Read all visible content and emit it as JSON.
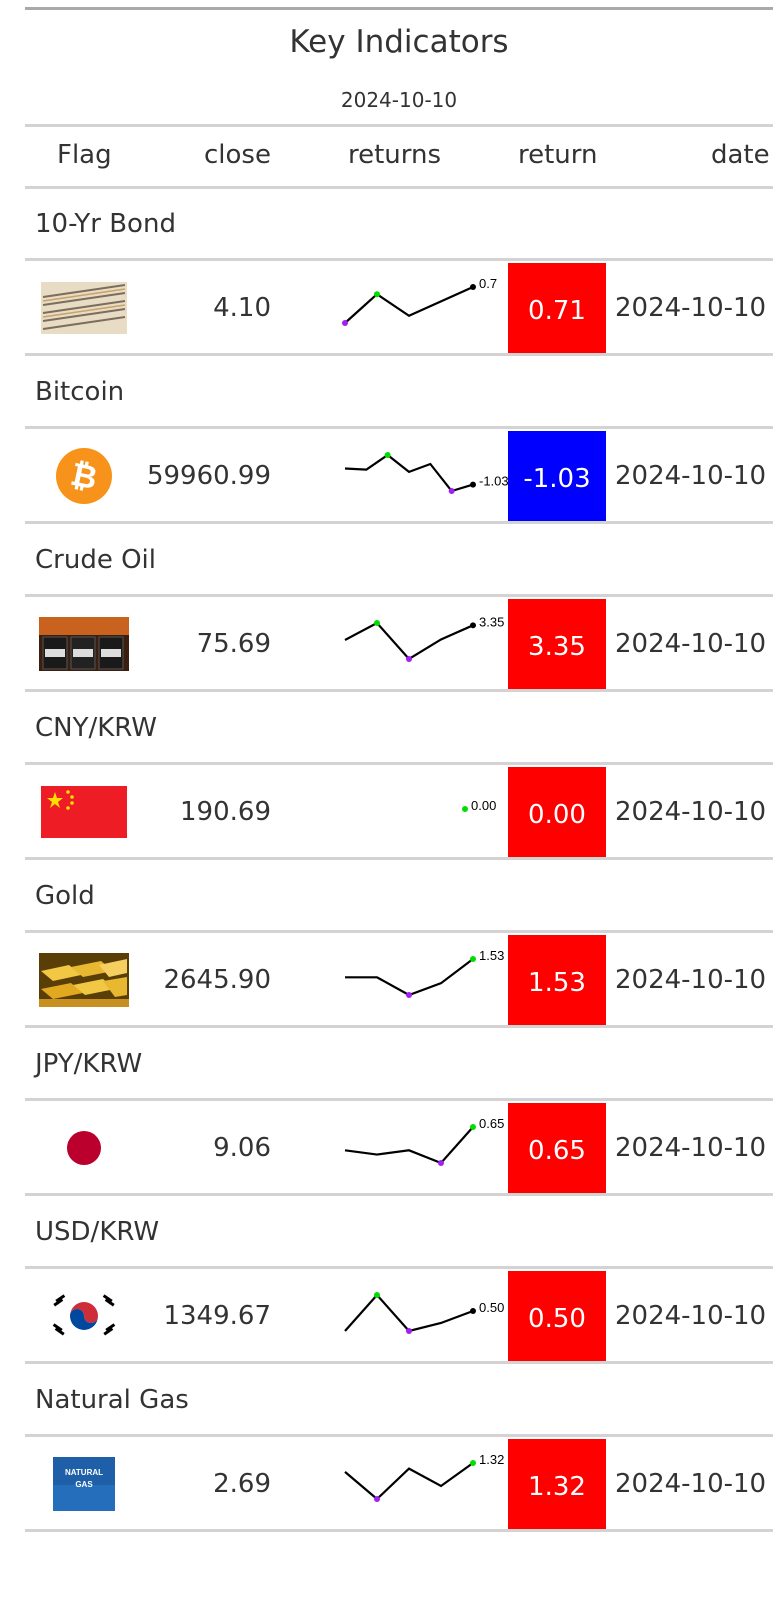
{
  "title": "Key Indicators",
  "subtitle": "2024-10-10",
  "columns": [
    "Flag",
    "close",
    "returns",
    "return",
    "date"
  ],
  "rows": [
    {
      "group": "10-Yr Bond",
      "flag_icon": "bond-paper-icon",
      "close": "4.10",
      "return": "0.71",
      "return_color": "#ff0000",
      "date": "2024-10-10",
      "spark": {
        "values": [
          0.2,
          0.6,
          0.3,
          0.5,
          0.7
        ],
        "label": "0.7",
        "points": [
          "#a020f0",
          "#00dd00",
          "",
          "",
          "#000000"
        ]
      }
    },
    {
      "group": "Bitcoin",
      "flag_icon": "bitcoin-icon",
      "close": "59960.99",
      "return": "-1.03",
      "return_color": "#0000ff",
      "date": "2024-10-10",
      "spark": {
        "values": [
          0.4,
          0.3,
          1.6,
          0.1,
          0.8,
          -1.6,
          -1.03
        ],
        "label": "-1.03",
        "points": [
          "",
          "",
          "#00dd00",
          "",
          "",
          "#a020f0",
          "#000000"
        ]
      }
    },
    {
      "group": "Crude Oil",
      "flag_icon": "oil-barrels-icon",
      "close": "75.69",
      "return": "3.35",
      "return_color": "#ff0000",
      "date": "2024-10-10",
      "spark": {
        "values": [
          0.5,
          3.8,
          -3.2,
          0.6,
          3.35
        ],
        "label": "3.35",
        "points": [
          "",
          "#00dd00",
          "#a020f0",
          "",
          "#000000"
        ]
      }
    },
    {
      "group": "CNY/KRW",
      "flag_icon": "china-flag-icon",
      "close": "190.69",
      "return": "0.00",
      "return_color": "#ff0000",
      "date": "2024-10-10",
      "spark": {
        "values": [
          0.0
        ],
        "label": "0.00",
        "points": [
          "#00dd00"
        ]
      }
    },
    {
      "group": "Gold",
      "flag_icon": "gold-bars-icon",
      "close": "2645.90",
      "return": "1.53",
      "return_color": "#ff0000",
      "date": "2024-10-10",
      "spark": {
        "values": [
          0.6,
          0.6,
          -0.3,
          0.3,
          1.53
        ],
        "label": "1.53",
        "points": [
          "",
          "",
          "#a020f0",
          "",
          "#00dd00"
        ]
      }
    },
    {
      "group": "JPY/KRW",
      "flag_icon": "japan-flag-icon",
      "close": "9.06",
      "return": "0.65",
      "return_color": "#ff0000",
      "date": "2024-10-10",
      "spark": {
        "values": [
          0.1,
          0.0,
          0.1,
          -0.2,
          0.65
        ],
        "label": "0.65",
        "points": [
          "",
          "",
          "",
          "#a020f0",
          "#00dd00"
        ]
      }
    },
    {
      "group": "USD/KRW",
      "flag_icon": "korea-flag-icon",
      "close": "1349.67",
      "return": "0.50",
      "return_color": "#ff0000",
      "date": "2024-10-10",
      "spark": {
        "values": [
          0.0,
          0.9,
          0.0,
          0.2,
          0.5
        ],
        "label": "0.50",
        "points": [
          "",
          "#00dd00",
          "#a020f0",
          "",
          "#000000"
        ]
      }
    },
    {
      "group": "Natural Gas",
      "flag_icon": "natural-gas-icon",
      "close": "2.69",
      "return": "1.32",
      "return_color": "#ff0000",
      "date": "2024-10-10",
      "spark": {
        "values": [
          0.5,
          -2.0,
          0.8,
          -0.8,
          1.32
        ],
        "label": "1.32",
        "points": [
          "",
          "#a020f0",
          "",
          "",
          "#00dd00"
        ]
      },
      "flag_text": [
        "NATURAL",
        "GAS"
      ]
    }
  ]
}
